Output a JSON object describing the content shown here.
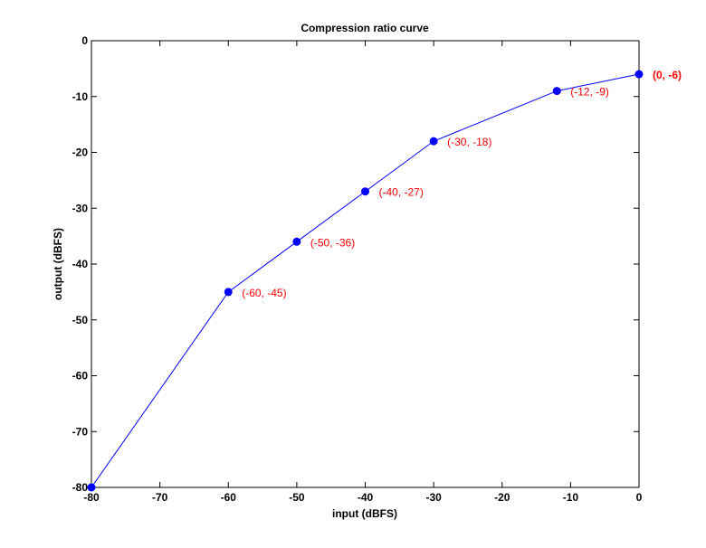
{
  "chart_data": {
    "type": "line",
    "title": "Compression ratio curve",
    "xlabel": "input (dBFS)",
    "ylabel": "output (dBFS)",
    "xlim": [
      -80,
      0
    ],
    "ylim": [
      -80,
      0
    ],
    "xticks": [
      -80,
      -70,
      -60,
      -50,
      -40,
      -30,
      -20,
      -10,
      0
    ],
    "yticks": [
      0,
      -10,
      -20,
      -30,
      -40,
      -50,
      -60,
      -70,
      -80
    ],
    "grid": false,
    "series": [
      {
        "x": [
          -80,
          -60,
          -50,
          -40,
          -30,
          -12,
          0
        ],
        "y": [
          -80,
          -45,
          -36,
          -27,
          -18,
          -9,
          -6
        ],
        "color": "#0000ff",
        "marker": "circle"
      }
    ],
    "annotations": [
      {
        "x": -60,
        "y": -45,
        "text": "(-60, -45)",
        "color": "#ff0000"
      },
      {
        "x": -50,
        "y": -36,
        "text": "(-50, -36)",
        "color": "#ff0000"
      },
      {
        "x": -40,
        "y": -27,
        "text": "(-40, -27)",
        "color": "#ff0000"
      },
      {
        "x": -30,
        "y": -18,
        "text": "(-30, -18)",
        "color": "#ff0000"
      },
      {
        "x": -12,
        "y": -9,
        "text": "(-12, -9)",
        "color": "#ff0000"
      },
      {
        "x": 0,
        "y": -6,
        "text": "(0, -6)",
        "color": "#8b0000"
      }
    ]
  }
}
